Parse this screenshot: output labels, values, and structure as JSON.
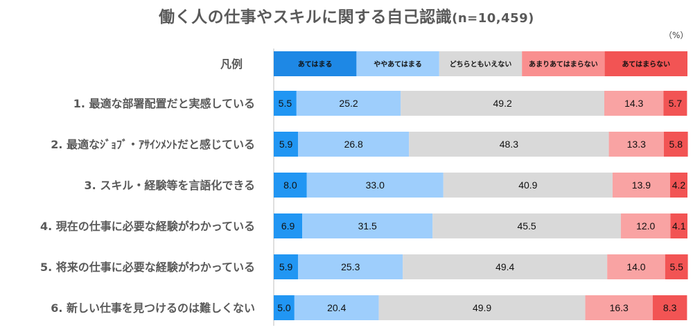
{
  "chart_data": {
    "type": "bar",
    "orientation": "horizontal",
    "stacked": true,
    "title": "働く人の仕事やスキルに関する自己認識",
    "sample_note": "(n=10,459)",
    "unit": "（%）",
    "legend_title": "凡例",
    "legend_placement": "top",
    "xlim": [
      0,
      100
    ],
    "categories": [
      "1. 最適な部署配置だと実感している",
      "2. 最適なｼﾞｮﾌﾞ・ｱｻｲﾝﾒﾝﾄだと感じている",
      "3. スキル・経験等を言語化できる",
      "4. 現在の仕事に必要な経験がわかっている",
      "5. 将来の仕事に必要な経験がわかっている",
      "6. 新しい仕事を見つけるのは難しくない"
    ],
    "series": [
      {
        "name": "あてはまる",
        "color": "#2196f3",
        "legend_color": "#1e88e5",
        "values": [
          5.5,
          5.9,
          8.0,
          6.9,
          5.9,
          5.0
        ]
      },
      {
        "name": "ややあてはまる",
        "color": "#9ecefc",
        "legend_color": "#9ecefc",
        "values": [
          25.2,
          26.8,
          33.0,
          31.5,
          25.3,
          20.4
        ]
      },
      {
        "name": "どちらともいえない",
        "color": "#d9d9d9",
        "legend_color": "#d9d9d9",
        "values": [
          49.2,
          48.3,
          40.9,
          45.5,
          49.4,
          49.9
        ]
      },
      {
        "name": "あまりあてはまらない",
        "color": "#f9a3a3",
        "legend_color": "#f98f8f",
        "values": [
          14.3,
          13.3,
          13.9,
          12.0,
          14.0,
          16.3
        ]
      },
      {
        "name": "あてはまらない",
        "color": "#f25454",
        "legend_color": "#f25454",
        "values": [
          5.7,
          5.8,
          4.2,
          4.1,
          5.5,
          8.3
        ]
      }
    ]
  }
}
